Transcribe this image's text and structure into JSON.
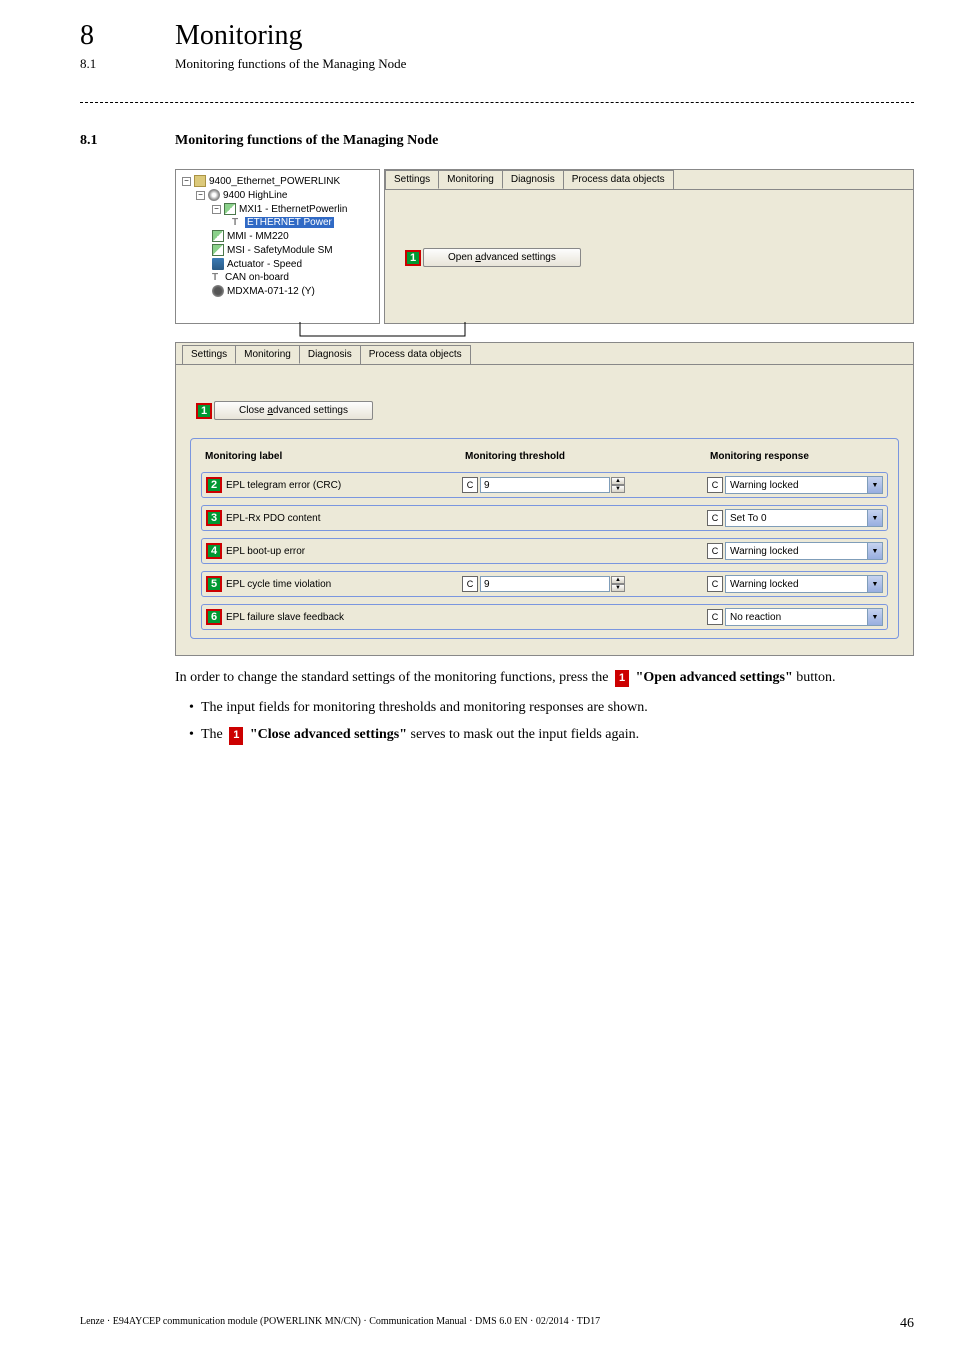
{
  "chapter": {
    "num": "8",
    "title": "Monitoring"
  },
  "subsection_small": {
    "num": "8.1",
    "title": "Monitoring functions of the Managing Node"
  },
  "section_heading": {
    "num": "8.1",
    "title": "Monitoring functions of the Managing Node"
  },
  "tree": {
    "root": "9400_Ethernet_POWERLINK",
    "n1": "9400 HighLine",
    "n2": "MXI1 - EthernetPowerlin",
    "n3": "ETHERNET Power",
    "n4": "MMI - MM220",
    "n5": "MSI - SafetyModule SM",
    "n6": "Actuator - Speed",
    "n7": "CAN on-board",
    "n8": "MDXMA-071-12 (Y)"
  },
  "tabs": {
    "t1": "Settings",
    "t2": "Monitoring",
    "t3": "Diagnosis",
    "t4": "Process data objects"
  },
  "buttons": {
    "open_adv": "Open advanced settings",
    "close_adv": "Close advanced settings"
  },
  "grid": {
    "hdr_label": "Monitoring label",
    "hdr_thresh": "Monitoring threshold",
    "hdr_resp": "Monitoring response",
    "rows": [
      {
        "badge": "2",
        "label": "EPL telegram error (CRC)",
        "thresh": "9",
        "has_thresh": true,
        "resp": "Warning locked"
      },
      {
        "badge": "3",
        "label": "EPL-Rx PDO content",
        "thresh": "",
        "has_thresh": false,
        "resp": "Set To 0"
      },
      {
        "badge": "4",
        "label": "EPL boot-up error",
        "thresh": "",
        "has_thresh": false,
        "resp": "Warning locked"
      },
      {
        "badge": "5",
        "label": "EPL cycle time violation",
        "thresh": "9",
        "has_thresh": true,
        "resp": "Warning locked"
      },
      {
        "badge": "6",
        "label": "EPL failure slave feedback",
        "thresh": "",
        "has_thresh": false,
        "resp": "No reaction"
      }
    ]
  },
  "c_label": "C",
  "badge1": "1",
  "body": {
    "p1a": "In order to change the standard settings of the monitoring functions, press the ",
    "p1b": " \"Open advanced settings\"",
    "p1c": " button.",
    "li1": "The input fields for monitoring thresholds and monitoring responses are shown.",
    "li2a": "The ",
    "li2b": " \"Close advanced settings\"",
    "li2c": " serves to mask out the input fields again."
  },
  "footer": {
    "left": "Lenze · E94AYCEP communication module (POWERLINK MN/CN) · Communication Manual · DMS 6.0 EN · 02/2014 · TD17",
    "page": "46"
  }
}
